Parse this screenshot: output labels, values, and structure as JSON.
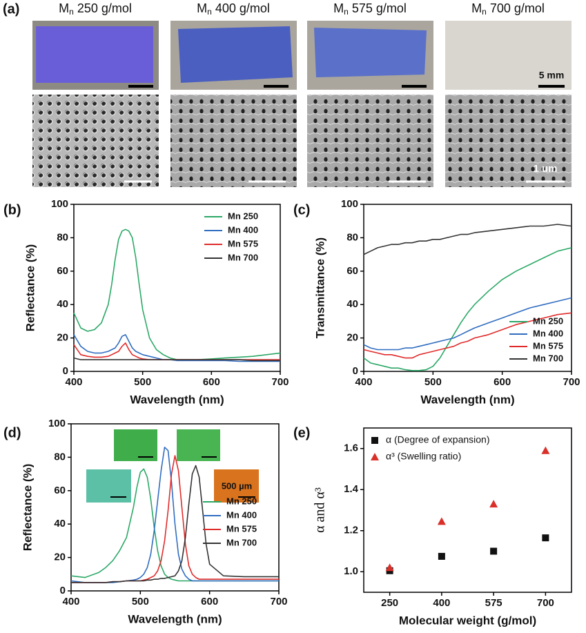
{
  "panel_a": {
    "label": "(a)",
    "symbol": "M",
    "subscript": "n",
    "samples": [
      "250 g/mol",
      "400 g/mol",
      "575 g/mol",
      "700 g/mol"
    ],
    "photo_scale": "5 mm",
    "sem_scale": "1 um"
  },
  "chart_data": [
    {
      "type": "line",
      "panel": "(b)",
      "xlabel": "Wavelength (nm)",
      "ylabel": "Reflectance (%)",
      "xlim": [
        400,
        700
      ],
      "xticks": [
        400,
        500,
        600,
        700
      ],
      "ylim": [
        0,
        100
      ],
      "yticks": [
        0,
        20,
        40,
        60,
        80,
        100
      ],
      "legend": "upper right",
      "x": [
        400,
        410,
        420,
        430,
        440,
        450,
        455,
        460,
        465,
        470,
        475,
        480,
        485,
        490,
        495,
        500,
        510,
        520,
        530,
        540,
        550,
        560,
        580,
        600,
        620,
        640,
        660,
        680,
        700
      ],
      "series": [
        {
          "name": "Mn 250",
          "color": "#2aa866",
          "values": [
            35,
            26,
            24,
            25,
            29,
            40,
            52,
            67,
            79,
            84,
            85,
            84,
            80,
            68,
            52,
            37,
            20,
            13,
            10,
            8,
            7,
            7,
            7,
            7.5,
            8,
            8.5,
            9,
            10,
            11
          ]
        },
        {
          "name": "Mn 400",
          "color": "#2f6cc0",
          "values": [
            22,
            15,
            12,
            11,
            11,
            12,
            13,
            14,
            17,
            21,
            22,
            18,
            14,
            12,
            11,
            10,
            9,
            8,
            7,
            7,
            6.5,
            6.5,
            6.5,
            6.5,
            6.5,
            6,
            6,
            6,
            6
          ]
        },
        {
          "name": "Mn 575",
          "color": "#e02a2a",
          "values": [
            16,
            10,
            9,
            8.5,
            8.5,
            9,
            10,
            11,
            12,
            15,
            17,
            13,
            10,
            9,
            8,
            7.5,
            7,
            7,
            7,
            7,
            7,
            7,
            7,
            7,
            7,
            7,
            7,
            7,
            7
          ]
        },
        {
          "name": "Mn 700",
          "color": "#333333",
          "values": [
            8,
            7,
            7,
            7,
            7,
            7,
            7,
            7,
            7,
            7,
            7,
            7,
            7,
            7,
            7,
            7,
            7,
            7,
            7,
            7,
            7,
            7,
            7,
            7,
            7,
            7,
            6.5,
            6.5,
            6.5
          ]
        }
      ]
    },
    {
      "type": "line",
      "panel": "(c)",
      "xlabel": "Wavelength (nm)",
      "ylabel": "Transmittance (%)",
      "xlim": [
        400,
        700
      ],
      "xticks": [
        400,
        500,
        600,
        700
      ],
      "ylim": [
        0,
        100
      ],
      "yticks": [
        0,
        20,
        40,
        60,
        80,
        100
      ],
      "legend": "lower right",
      "x": [
        400,
        410,
        420,
        430,
        440,
        450,
        460,
        470,
        480,
        490,
        500,
        510,
        520,
        530,
        540,
        550,
        560,
        580,
        600,
        620,
        640,
        660,
        680,
        700
      ],
      "series": [
        {
          "name": "Mn 250",
          "color": "#2aa866",
          "values": [
            8,
            5,
            4,
            3,
            2,
            2,
            1,
            0.5,
            0.5,
            1,
            3,
            8,
            15,
            22,
            29,
            35,
            40,
            48,
            55,
            60,
            64,
            68,
            72,
            74
          ]
        },
        {
          "name": "Mn 400",
          "color": "#2f6cc0",
          "values": [
            16,
            14,
            13,
            13,
            13,
            13,
            14,
            14,
            15,
            16,
            17,
            18,
            19,
            20,
            22,
            24,
            26,
            29,
            32,
            35,
            38,
            40,
            42,
            44
          ]
        },
        {
          "name": "Mn 575",
          "color": "#e02a2a",
          "values": [
            13,
            12,
            11,
            10,
            10,
            9,
            8,
            8,
            10,
            11,
            12,
            13,
            14,
            15,
            17,
            18,
            20,
            22,
            25,
            28,
            30,
            32,
            34,
            35
          ]
        },
        {
          "name": "Mn 700",
          "color": "#333333",
          "values": [
            70,
            72,
            74,
            75,
            76,
            76,
            77,
            77,
            78,
            78,
            79,
            79,
            80,
            81,
            82,
            82,
            83,
            84,
            85,
            86,
            87,
            87,
            88,
            87
          ]
        }
      ]
    },
    {
      "type": "line",
      "panel": "(d)",
      "xlabel": "Wavelength (nm)",
      "ylabel": "Reflectance (%)",
      "xlim": [
        400,
        700
      ],
      "xticks": [
        400,
        500,
        600,
        700
      ],
      "ylim": [
        0,
        100
      ],
      "yticks": [
        0,
        20,
        40,
        60,
        80,
        100
      ],
      "legend": "center right",
      "inset_scale": "500 µm",
      "x": [
        400,
        420,
        440,
        450,
        460,
        470,
        480,
        490,
        495,
        500,
        505,
        510,
        515,
        520,
        525,
        530,
        535,
        540,
        545,
        550,
        555,
        560,
        565,
        570,
        575,
        580,
        585,
        590,
        595,
        600,
        620,
        650,
        700
      ],
      "series": [
        {
          "name": "Mn 250",
          "color": "#2aa866",
          "values": [
            9,
            8,
            11,
            14,
            18,
            24,
            32,
            50,
            62,
            71,
            73,
            68,
            55,
            38,
            24,
            15,
            10,
            8,
            7,
            6.5,
            6,
            6,
            6,
            6,
            6,
            6,
            6,
            6,
            6,
            6,
            6,
            6,
            6
          ]
        },
        {
          "name": "Mn 400",
          "color": "#2f6cc0",
          "values": [
            6,
            5,
            5,
            5,
            5,
            5.5,
            6,
            6.5,
            7,
            8,
            10,
            14,
            22,
            36,
            54,
            72,
            86,
            84,
            65,
            40,
            22,
            13,
            9,
            7,
            6,
            6,
            6,
            6,
            6,
            6,
            6,
            6,
            6
          ]
        },
        {
          "name": "Mn 575",
          "color": "#e02a2a",
          "values": [
            5,
            5,
            5,
            5,
            5.5,
            5.5,
            6,
            6,
            6,
            6,
            6.5,
            7,
            8,
            9,
            12,
            18,
            30,
            48,
            70,
            81,
            72,
            50,
            28,
            15,
            10,
            8,
            7,
            7,
            7,
            7,
            7,
            7,
            7
          ]
        },
        {
          "name": "Mn 700",
          "color": "#333333",
          "values": [
            5,
            5,
            5,
            5,
            5.5,
            5.5,
            6,
            6,
            6,
            6,
            6,
            6.5,
            6.5,
            7,
            7,
            7.5,
            7.5,
            8,
            8.5,
            9,
            12,
            18,
            32,
            52,
            70,
            75,
            68,
            48,
            28,
            16,
            9,
            8.5,
            8.5
          ]
        }
      ]
    },
    {
      "type": "scatter",
      "panel": "(e)",
      "xlabel": "Molecular weight (g/mol)",
      "ylabel": "α and α³",
      "categories": [
        "250",
        "400",
        "575",
        "700"
      ],
      "ylim": [
        0.9,
        1.7
      ],
      "yticks": [
        {
          "value": 1.0,
          "label": "1.0"
        },
        {
          "value": 1.2,
          "label": "1.2"
        },
        {
          "value": 1.4,
          "label": "1.4"
        },
        {
          "value": 1.6,
          "label": "1.6"
        }
      ],
      "legend": "upper left",
      "series": [
        {
          "name": "α (Degree of expansion)",
          "color": "#111111",
          "marker": "square",
          "values": [
            1.005,
            1.075,
            1.1,
            1.165
          ]
        },
        {
          "name": "α³ (Swelling ratio)",
          "color": "#d9302a",
          "marker": "triangle",
          "values": [
            1.02,
            1.245,
            1.33,
            1.59
          ]
        }
      ]
    }
  ]
}
